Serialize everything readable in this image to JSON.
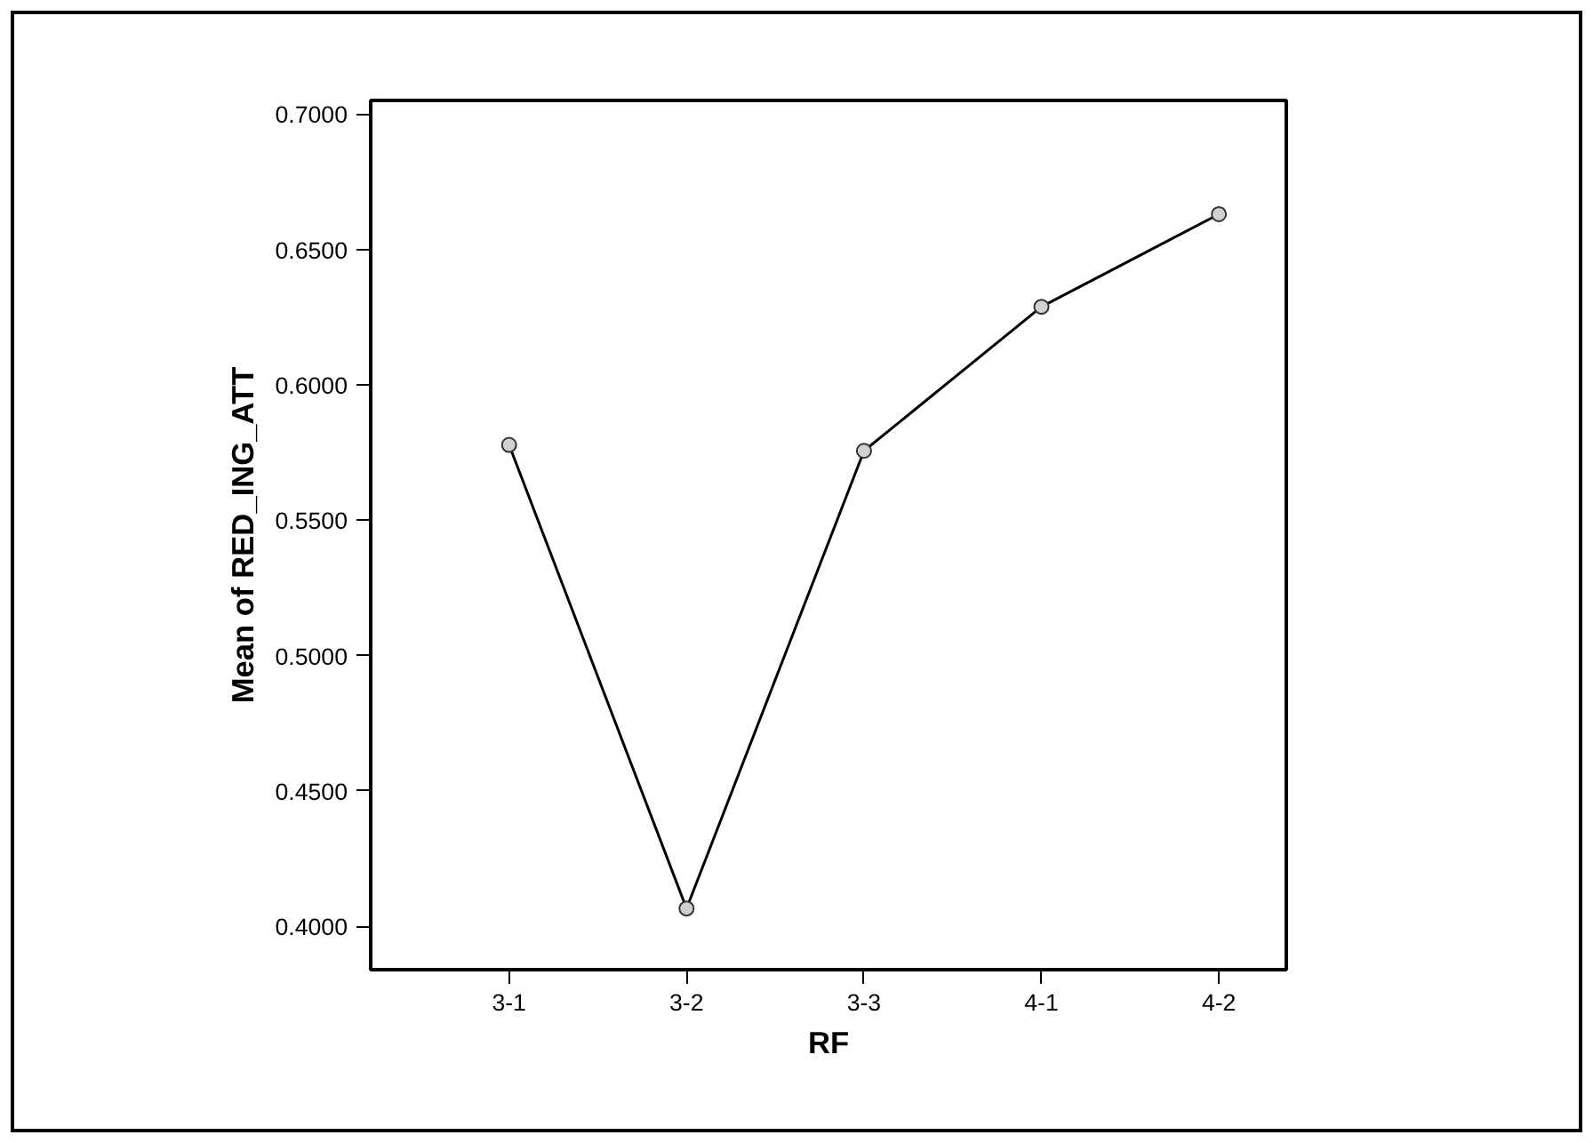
{
  "chart_data": {
    "type": "line",
    "xlabel": "RF",
    "ylabel": "Mean of RED_ING_ATT",
    "categories": [
      "3-1",
      "3-2",
      "3-3",
      "4-1",
      "4-2"
    ],
    "series": [
      {
        "color": "#000000",
        "values": [
          0.5778,
          0.4066,
          0.5756,
          0.6288,
          0.663
        ]
      }
    ],
    "ylim": [
      0.384,
      0.705
    ],
    "yticks": [
      {
        "value": 0.4,
        "label": "0.4000"
      },
      {
        "value": 0.45,
        "label": "0.4500"
      },
      {
        "value": 0.5,
        "label": "0.5000"
      },
      {
        "value": 0.55,
        "label": "0.5500"
      },
      {
        "value": 0.6,
        "label": "0.6000"
      },
      {
        "value": 0.65,
        "label": "0.6500"
      },
      {
        "value": 0.7,
        "label": "0.7000"
      }
    ],
    "marker": "circle",
    "line_style": "solid",
    "grid": false
  }
}
